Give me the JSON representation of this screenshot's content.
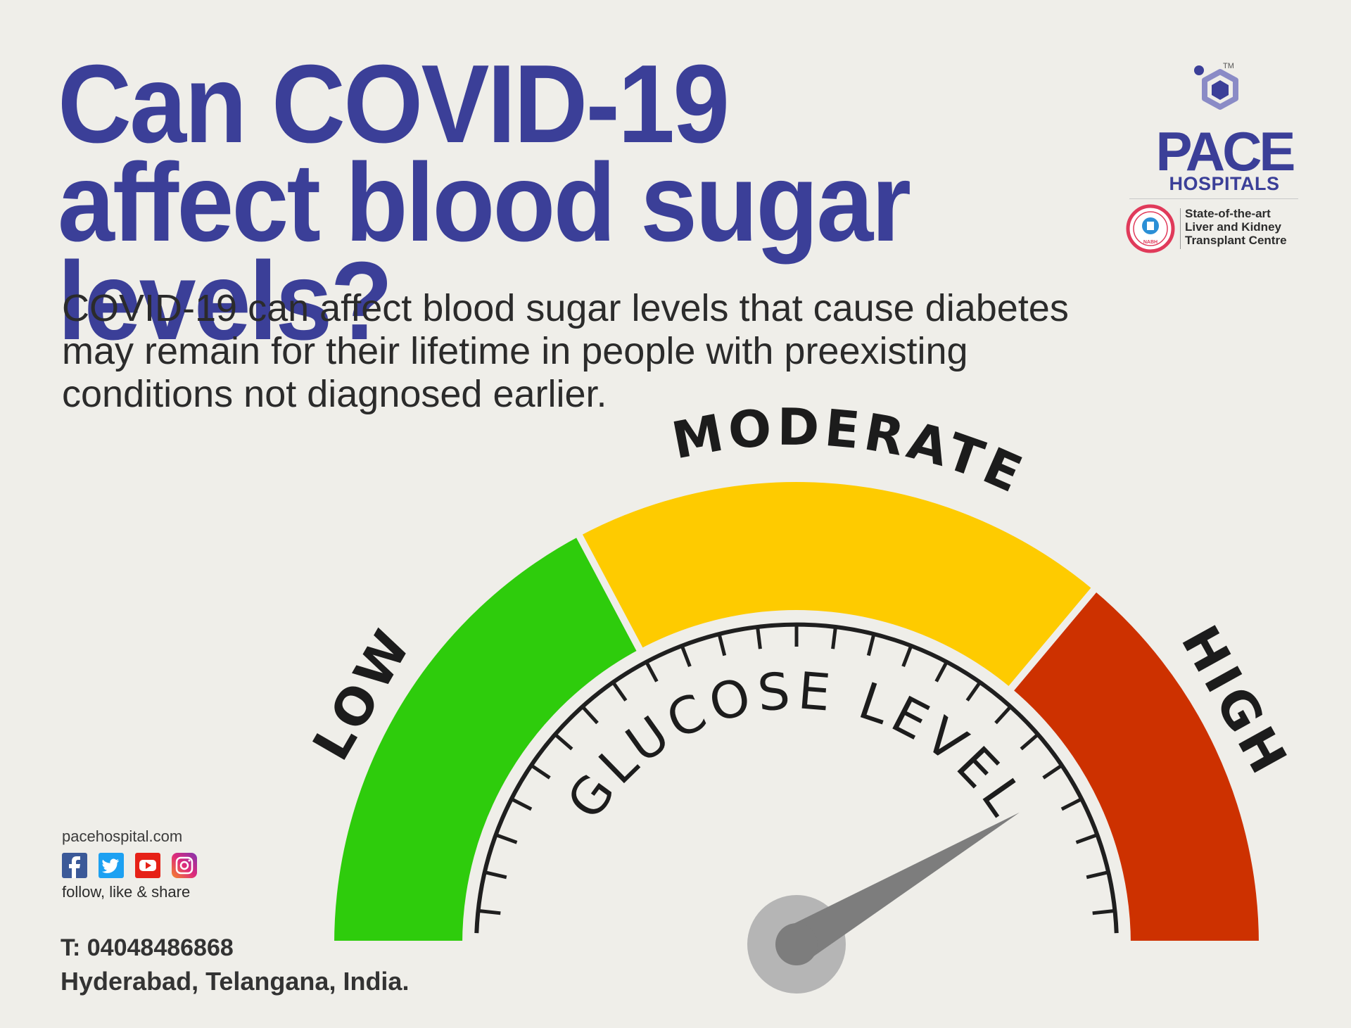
{
  "headline": "Can COVID-19 affect blood sugar levels?",
  "description": "COVID-19 can affect blood sugar levels that cause diabetes may remain for their lifetime in people with preexisting conditions not diagnosed earlier.",
  "brand": {
    "name": "PACE",
    "subname": "HOSPITALS",
    "trademark": "TM",
    "accreditation_badge": "NABH",
    "tagline_lines": [
      "State-of-the-art",
      "Liver and Kidney",
      "Transplant Centre"
    ]
  },
  "gauge": {
    "zones": [
      {
        "label": "LOW",
        "color": "#2ecc0c"
      },
      {
        "label": "MODERATE",
        "color": "#fecb00"
      },
      {
        "label": "HIGH",
        "color": "#cd3100"
      }
    ],
    "caption": "GLUCOSE LEVEL",
    "needle_value_percent": 83,
    "tick_count": 25
  },
  "footer": {
    "website": "pacehospital.com",
    "social_icons": [
      "facebook-icon",
      "twitter-icon",
      "youtube-icon",
      "instagram-icon"
    ],
    "follow_text": "follow, like & share",
    "phone": "T: 04048486868",
    "address": "Hyderabad, Telangana, India."
  },
  "colors": {
    "brand_blue": "#3b3f98",
    "background": "#efeee9",
    "body_text": "#2b2b2b"
  }
}
